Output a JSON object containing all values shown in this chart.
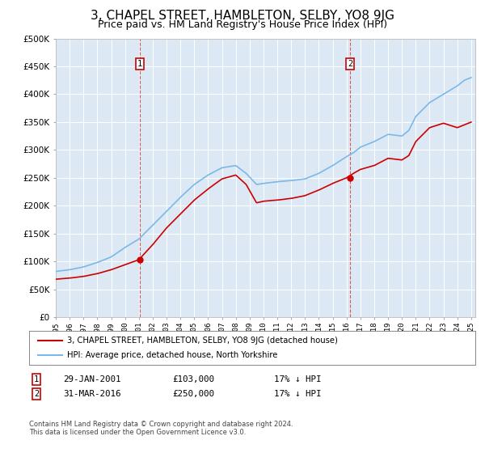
{
  "title": "3, CHAPEL STREET, HAMBLETON, SELBY, YO8 9JG",
  "subtitle": "Price paid vs. HM Land Registry's House Price Index (HPI)",
  "title_fontsize": 11,
  "subtitle_fontsize": 9,
  "background_color": "#ffffff",
  "plot_bg_color": "#dce9f5",
  "grid_color": "#ffffff",
  "ylim": [
    0,
    500000
  ],
  "yticks": [
    0,
    50000,
    100000,
    150000,
    200000,
    250000,
    300000,
    350000,
    400000,
    450000,
    500000
  ],
  "ytick_labels": [
    "£0",
    "£50K",
    "£100K",
    "£150K",
    "£200K",
    "£250K",
    "£300K",
    "£350K",
    "£400K",
    "£450K",
    "£500K"
  ],
  "hpi_color": "#7ab8e8",
  "price_color": "#cc0000",
  "marker1_value": 103000,
  "marker1_date": "29-JAN-2001",
  "marker1_x": 2001.08,
  "marker2_value": 250000,
  "marker2_date": "31-MAR-2016",
  "marker2_x": 2016.25,
  "legend_label_price": "3, CHAPEL STREET, HAMBLETON, SELBY, YO8 9JG (detached house)",
  "legend_label_hpi": "HPI: Average price, detached house, North Yorkshire",
  "footer": "Contains HM Land Registry data © Crown copyright and database right 2024.\nThis data is licensed under the Open Government Licence v3.0.",
  "hpi_knots": [
    1995,
    1996,
    1997,
    1998,
    1999,
    2000,
    2001,
    2002,
    2003,
    2004,
    2005,
    2006,
    2007,
    2008,
    2008.75,
    2009.5,
    2010,
    2011,
    2012,
    2013,
    2014,
    2015,
    2016,
    2016.5,
    2017,
    2018,
    2019,
    2020,
    2020.5,
    2021,
    2022,
    2023,
    2024,
    2024.5,
    2025
  ],
  "hpi_vals": [
    82000,
    85000,
    90000,
    98000,
    108000,
    125000,
    140000,
    165000,
    190000,
    215000,
    238000,
    255000,
    268000,
    272000,
    258000,
    238000,
    240000,
    243000,
    245000,
    248000,
    258000,
    272000,
    288000,
    295000,
    305000,
    315000,
    328000,
    325000,
    335000,
    360000,
    385000,
    400000,
    415000,
    425000,
    430000
  ],
  "price_knots": [
    1995,
    1996,
    1997,
    1998,
    1999,
    2000,
    2001,
    2002,
    2003,
    2004,
    2005,
    2006,
    2007,
    2008,
    2008.75,
    2009.5,
    2010,
    2011,
    2012,
    2013,
    2014,
    2015,
    2016,
    2016.5,
    2017,
    2018,
    2019,
    2020,
    2020.5,
    2021,
    2022,
    2023,
    2024,
    2024.5,
    2025
  ],
  "price_vals": [
    68000,
    70000,
    73000,
    78000,
    85000,
    94000,
    103000,
    130000,
    160000,
    185000,
    210000,
    230000,
    248000,
    255000,
    238000,
    205000,
    208000,
    210000,
    213000,
    218000,
    228000,
    240000,
    250000,
    258000,
    265000,
    272000,
    285000,
    282000,
    290000,
    315000,
    340000,
    348000,
    340000,
    345000,
    350000
  ]
}
